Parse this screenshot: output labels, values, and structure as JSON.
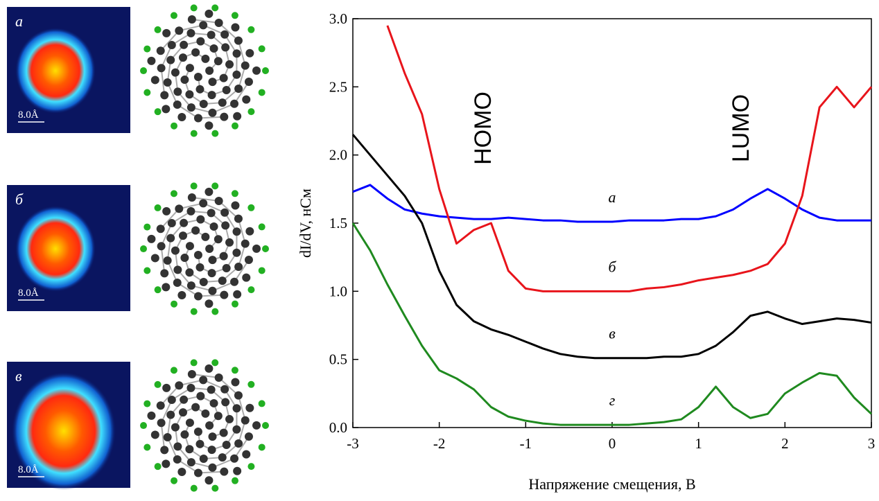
{
  "panels": [
    {
      "label": "а",
      "scale": "8.0Å"
    },
    {
      "label": "б",
      "scale": "8.0Å"
    },
    {
      "label": "в",
      "scale": "8.0Å"
    }
  ],
  "chart_data": {
    "type": "line",
    "xlabel": "Напряжение смещения, В",
    "ylabel": "dI/dV, нСм",
    "annotations": [
      "HOMO",
      "LUMO"
    ],
    "x": [
      -3,
      -2.8,
      -2.6,
      -2.4,
      -2.2,
      -2,
      -1.8,
      -1.6,
      -1.4,
      -1.2,
      -1,
      -0.8,
      -0.6,
      -0.4,
      -0.2,
      0,
      0.2,
      0.4,
      0.6,
      0.8,
      1,
      1.2,
      1.4,
      1.6,
      1.8,
      2,
      2.2,
      2.4,
      2.6,
      2.8,
      3
    ],
    "series": [
      {
        "name": "а",
        "color": "#0000ff",
        "values": [
          1.73,
          1.78,
          1.68,
          1.6,
          1.57,
          1.55,
          1.54,
          1.53,
          1.53,
          1.54,
          1.53,
          1.52,
          1.52,
          1.51,
          1.51,
          1.51,
          1.52,
          1.52,
          1.52,
          1.53,
          1.53,
          1.55,
          1.6,
          1.68,
          1.75,
          1.68,
          1.6,
          1.54,
          1.52,
          1.52,
          1.52
        ]
      },
      {
        "name": "б",
        "color": "#e8141b",
        "values": [
          null,
          null,
          2.95,
          2.6,
          2.3,
          1.75,
          1.35,
          1.45,
          1.5,
          1.15,
          1.02,
          1,
          1,
          1,
          1,
          1,
          1,
          1.02,
          1.03,
          1.05,
          1.08,
          1.1,
          1.12,
          1.15,
          1.2,
          1.35,
          1.7,
          2.35,
          2.5,
          2.35,
          2.5
        ]
      },
      {
        "name": "в",
        "color": "#000000",
        "values": [
          2.15,
          2,
          1.85,
          1.7,
          1.5,
          1.15,
          0.9,
          0.78,
          0.72,
          0.68,
          0.63,
          0.58,
          0.54,
          0.52,
          0.51,
          0.51,
          0.51,
          0.51,
          0.52,
          0.52,
          0.54,
          0.6,
          0.7,
          0.82,
          0.85,
          0.8,
          0.76,
          0.78,
          0.8,
          0.79,
          0.77
        ]
      },
      {
        "name": "г",
        "color": "#1f8a1f",
        "values": [
          1.5,
          1.3,
          1.05,
          0.82,
          0.6,
          0.42,
          0.36,
          0.28,
          0.15,
          0.08,
          0.05,
          0.03,
          0.02,
          0.02,
          0.02,
          0.02,
          0.02,
          0.03,
          0.04,
          0.06,
          0.15,
          0.3,
          0.15,
          0.07,
          0.1,
          0.25,
          0.33,
          0.4,
          0.38,
          0.22,
          0.1
        ]
      }
    ],
    "xlim": [
      -3,
      3
    ],
    "xticks": [
      -3,
      -2,
      -1,
      0,
      1,
      2,
      3
    ],
    "ylim": [
      0,
      3
    ],
    "yticks": [
      {
        "value": 0,
        "label": "0.0"
      },
      {
        "value": 0.5,
        "label": "0.5"
      },
      {
        "value": 1,
        "label": "1.0"
      },
      {
        "value": 1.5,
        "label": "1.5"
      },
      {
        "value": 2,
        "label": "2.0"
      },
      {
        "value": 2.5,
        "label": "2.5"
      },
      {
        "value": 3,
        "label": "3.0"
      }
    ]
  }
}
